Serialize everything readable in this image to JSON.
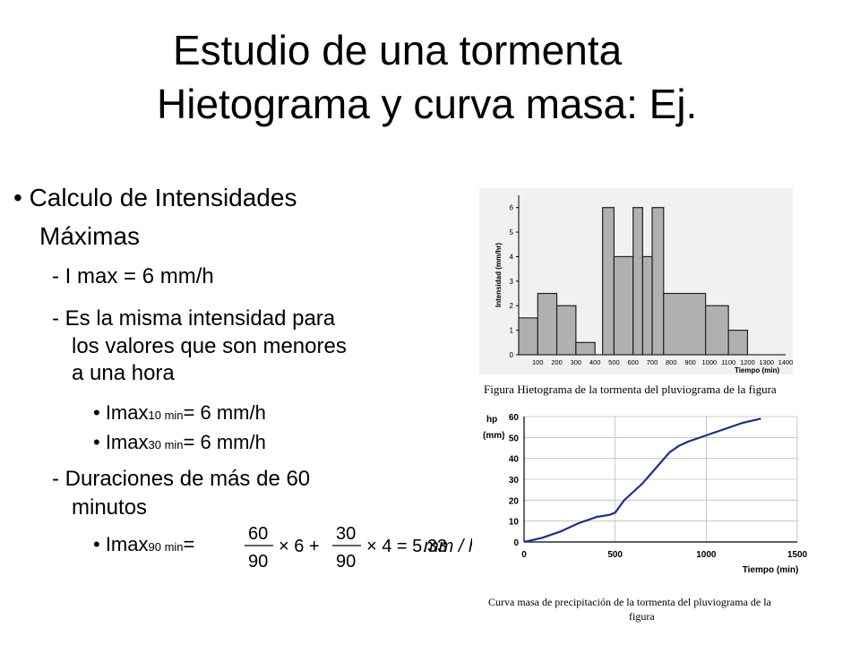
{
  "title": {
    "line1": "Estudio de una tormenta",
    "line2": "Hietograma y curva masa: Ej."
  },
  "bullets": {
    "main_line1": "• Calculo de Intensidades",
    "main_line2": "Máximas",
    "item1": "- I max = 6 mm/h",
    "item2_line1": "- Es la misma intensidad para",
    "item2_line2": "los valores que son menores",
    "item2_line3": "a una hora",
    "sub1_prefix": "• Imax",
    "sub1_sub": "10 min",
    "sub1_suffix": "= 6 mm/h",
    "sub2_prefix": "• Imax",
    "sub2_sub": "30 min",
    "sub2_suffix": "= 6 mm/h",
    "item3_line1": "- Duraciones de más de 60",
    "item3_line2": "minutos",
    "sub3_prefix": "• Imax",
    "sub3_sub": "90 min",
    "sub3_suffix": "="
  },
  "formula": {
    "n1": "60",
    "d1": "90",
    "t1": "× 6 +",
    "n2": "30",
    "d2": "90",
    "t2": "× 4 = 5.33",
    "unit": "mm / hr"
  },
  "chart_data": [
    {
      "type": "bar",
      "ylabel": "Intensidad (mm/hr)",
      "xlabel": "Tiempo (min)",
      "x_ticks": [
        "100",
        "200",
        "300",
        "400",
        "500",
        "600",
        "700",
        "800",
        "900",
        "1000",
        "1100",
        "1200",
        "1300",
        "1400"
      ],
      "y_ticks": [
        "0",
        "1",
        "2",
        "3",
        "4",
        "5",
        "6"
      ],
      "ylim": [
        0,
        6.5
      ],
      "xlim": [
        0,
        1400
      ],
      "bars": [
        {
          "start": 0,
          "end": 100,
          "value": 1.5
        },
        {
          "start": 100,
          "end": 200,
          "value": 2.5
        },
        {
          "start": 200,
          "end": 300,
          "value": 2
        },
        {
          "start": 300,
          "end": 400,
          "value": 0.5
        },
        {
          "start": 440,
          "end": 500,
          "value": 6
        },
        {
          "start": 500,
          "end": 600,
          "value": 4
        },
        {
          "start": 600,
          "end": 650,
          "value": 6
        },
        {
          "start": 650,
          "end": 700,
          "value": 4
        },
        {
          "start": 700,
          "end": 760,
          "value": 6
        },
        {
          "start": 760,
          "end": 980,
          "value": 2.5
        },
        {
          "start": 980,
          "end": 1100,
          "value": 2
        },
        {
          "start": 1100,
          "end": 1200,
          "value": 1
        }
      ],
      "caption": "Figura Hietograma de la tormenta del pluviograma de la figura",
      "bar_color": "#b0b0b0"
    },
    {
      "type": "line",
      "ylabel_line1": "hp",
      "ylabel_line2": "(mm)",
      "xlabel": "Tiempo (min)",
      "x_ticks": [
        "0",
        "500",
        "1000",
        "1500"
      ],
      "y_ticks": [
        "0",
        "10",
        "20",
        "30",
        "40",
        "50",
        "60"
      ],
      "xlim": [
        0,
        1500
      ],
      "ylim": [
        0,
        60
      ],
      "grid": true,
      "series": [
        {
          "x": [
            0,
            50,
            100,
            200,
            300,
            400,
            470,
            500,
            550,
            600,
            650,
            700,
            750,
            800,
            850,
            900,
            1000,
            1100,
            1200,
            1300
          ],
          "y": [
            0,
            1,
            2,
            5,
            9,
            12,
            13,
            14,
            20,
            24,
            28,
            33,
            38,
            43,
            46,
            48,
            51,
            54,
            57,
            59
          ],
          "color": "#1f2f7a"
        }
      ],
      "caption_line1": "Curva masa de precipitación de la tormenta del pluviograma de la",
      "caption_line2": "figura"
    }
  ]
}
